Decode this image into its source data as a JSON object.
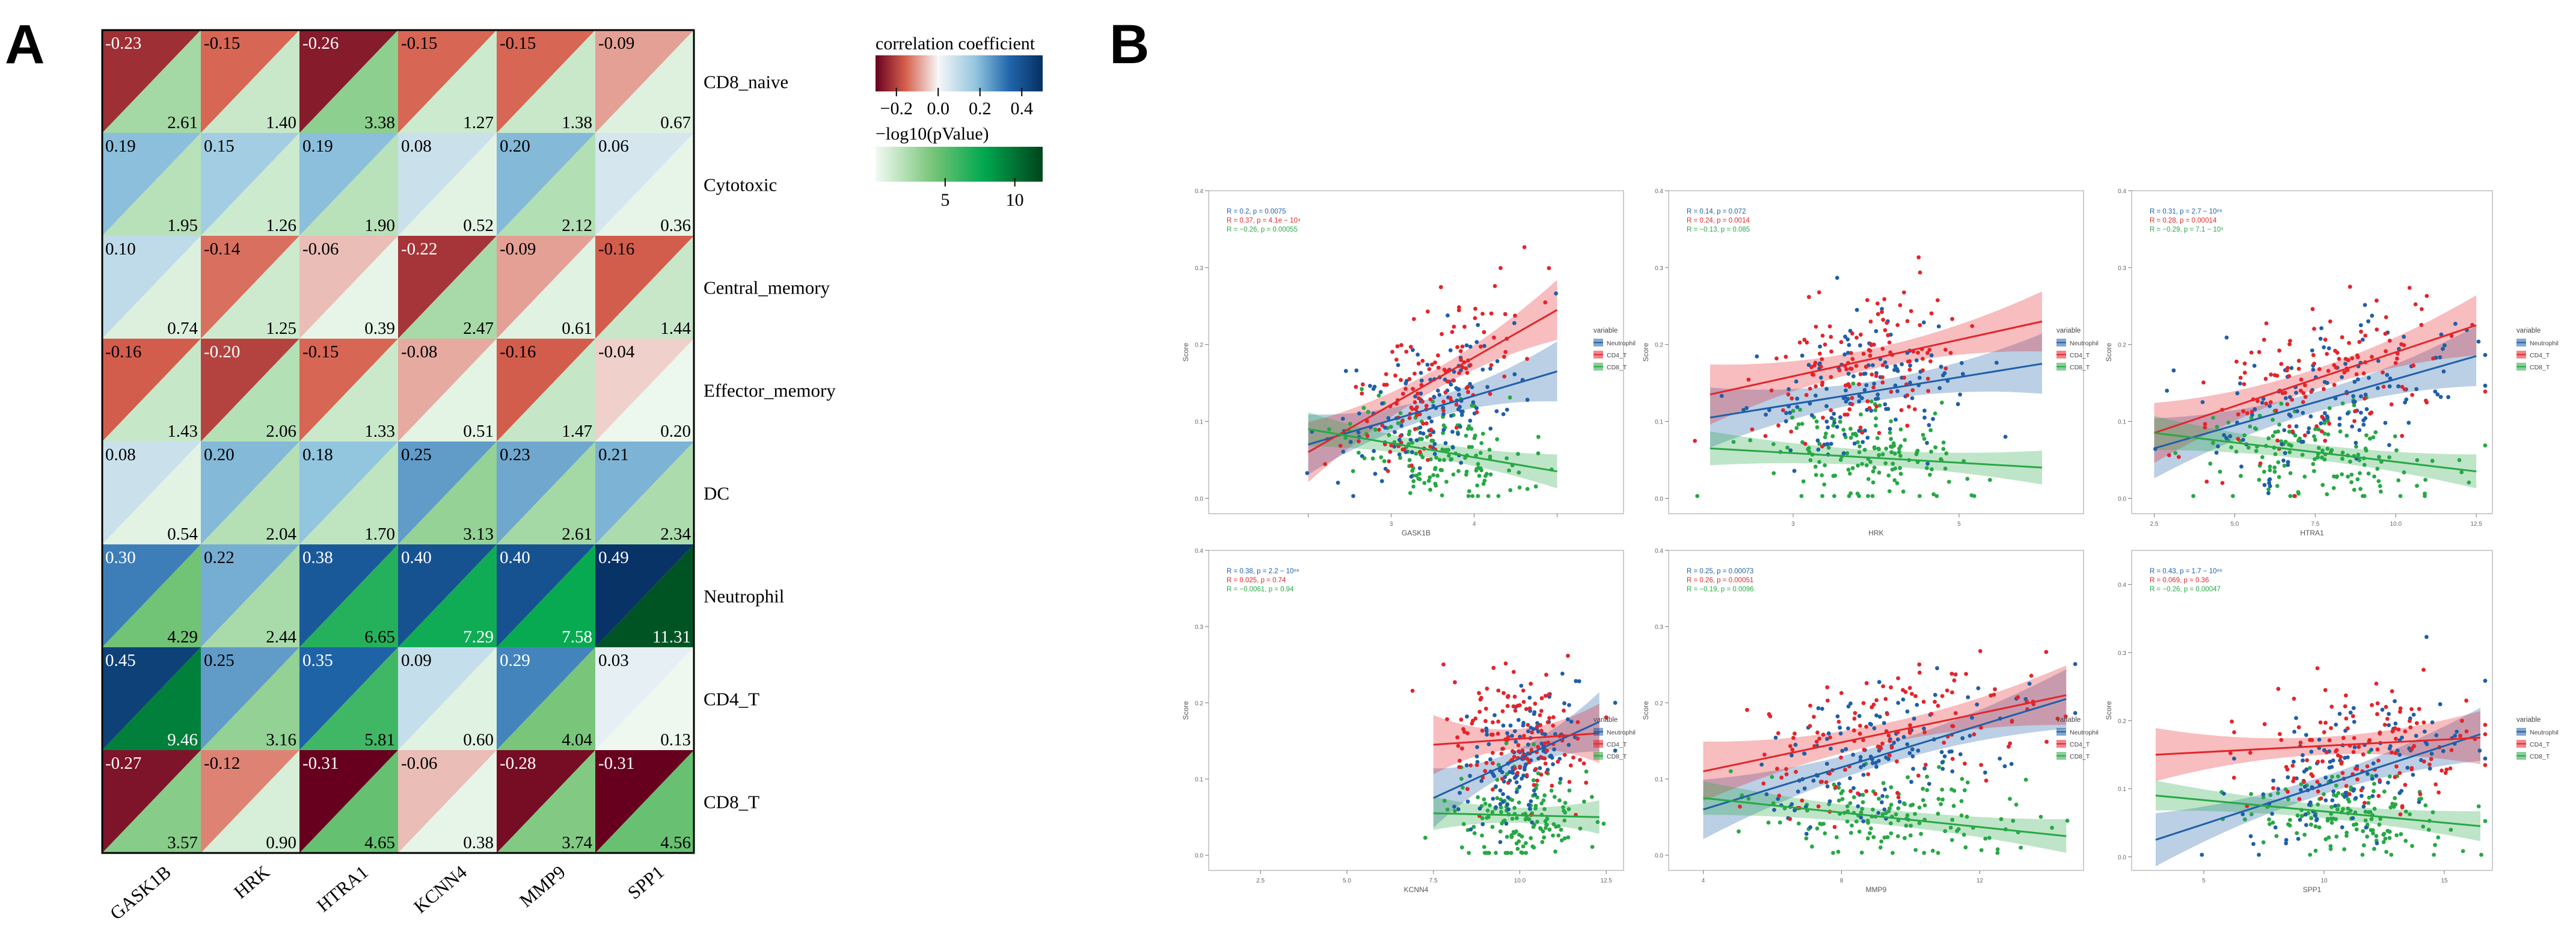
{
  "panel_labels": {
    "a": "A",
    "b": "B"
  },
  "colors": {
    "neutrophil": "#1f5fa8",
    "cd4": "#e3252b",
    "cd8": "#27a845",
    "corr_neg": "#67001f",
    "corr_mid": "#f7f7f7",
    "corr_pos": "#053061",
    "p_low": "#f2faf3",
    "p_high": "#00441b"
  },
  "chart_data": [
    {
      "type": "heatmap",
      "panel": "A",
      "columns": [
        "GASK1B",
        "HRK",
        "HTRA1",
        "KCNN4",
        "MMP9",
        "SPP1"
      ],
      "rows": [
        "CD8_naive",
        "Cytotoxic",
        "Central_memory",
        "Effector_memory",
        "DC",
        "Neutrophil",
        "CD4_T",
        "CD8_T"
      ],
      "correlation": [
        [
          -0.23,
          -0.15,
          -0.26,
          -0.15,
          -0.15,
          -0.09
        ],
        [
          0.19,
          0.15,
          0.19,
          0.08,
          0.2,
          0.06
        ],
        [
          0.1,
          -0.14,
          -0.06,
          -0.22,
          -0.09,
          -0.16
        ],
        [
          -0.16,
          -0.2,
          -0.15,
          -0.08,
          -0.16,
          -0.04
        ],
        [
          0.08,
          0.2,
          0.18,
          0.25,
          0.23,
          0.21
        ],
        [
          0.3,
          0.22,
          0.38,
          0.4,
          0.4,
          0.49
        ],
        [
          0.45,
          0.25,
          0.35,
          0.09,
          0.29,
          0.03
        ],
        [
          -0.27,
          -0.12,
          -0.31,
          -0.06,
          -0.28,
          -0.31
        ]
      ],
      "correlation_labels": [
        [
          "-0.23",
          "-0.15",
          "-0.26",
          "-0.15",
          "-0.15",
          "-0.09"
        ],
        [
          "0.19",
          "0.15",
          "0.19",
          "0.08",
          "0.20",
          "0.06"
        ],
        [
          "0.10",
          "-0.14",
          "-0.06",
          "-0.22",
          "-0.09",
          "-0.16"
        ],
        [
          "-0.16",
          "-0.20",
          "-0.15",
          "-0.08",
          "-0.16",
          "-0.04"
        ],
        [
          "0.08",
          "0.20",
          "0.18",
          "0.25",
          "0.23",
          "0.21"
        ],
        [
          "0.30",
          "0.22",
          "0.38",
          "0.40",
          "0.40",
          "0.49"
        ],
        [
          "0.45",
          "0.25",
          "0.35",
          "0.09",
          "0.29",
          "0.03"
        ],
        [
          "-0.27",
          "-0.12",
          "-0.31",
          "-0.06",
          "-0.28",
          "-0.31"
        ]
      ],
      "neg_log10_p": [
        [
          2.61,
          1.4,
          3.38,
          1.27,
          1.38,
          0.67
        ],
        [
          1.95,
          1.26,
          1.9,
          0.52,
          2.12,
          0.36
        ],
        [
          0.74,
          1.25,
          0.39,
          2.47,
          0.61,
          1.44
        ],
        [
          1.43,
          2.06,
          1.33,
          0.51,
          1.47,
          0.2
        ],
        [
          0.54,
          2.04,
          1.7,
          3.13,
          2.61,
          2.34
        ],
        [
          4.29,
          2.44,
          6.65,
          7.29,
          7.58,
          11.31
        ],
        [
          9.46,
          3.16,
          5.81,
          0.6,
          4.04,
          0.13
        ],
        [
          3.57,
          0.9,
          4.65,
          0.38,
          3.74,
          4.56
        ]
      ],
      "p_labels": [
        [
          "2.61",
          "1.40",
          "3.38",
          "1.27",
          "1.38",
          "0.67"
        ],
        [
          "1.95",
          "1.26",
          "1.90",
          "0.52",
          "2.12",
          "0.36"
        ],
        [
          "0.74",
          "1.25",
          "0.39",
          "2.47",
          "0.61",
          "1.44"
        ],
        [
          "1.43",
          "2.06",
          "1.33",
          "0.51",
          "1.47",
          "0.20"
        ],
        [
          "0.54",
          "2.04",
          "1.70",
          "3.13",
          "2.61",
          "2.34"
        ],
        [
          "4.29",
          "2.44",
          "6.65",
          "7.29",
          "7.58",
          "11.31"
        ],
        [
          "9.46",
          "3.16",
          "5.81",
          "0.60",
          "4.04",
          "0.13"
        ],
        [
          "3.57",
          "0.90",
          "4.65",
          "0.38",
          "3.74",
          "4.56"
        ]
      ],
      "legend": {
        "corr_title": "correlation coefficient",
        "corr_range": [
          -0.3,
          0.5
        ],
        "corr_ticks": [
          -0.2,
          0.0,
          0.2,
          0.4
        ],
        "corr_tick_labels": [
          "−0.2",
          "0.0",
          "0.2",
          "0.4"
        ],
        "p_title": "−log10(pValue)",
        "p_range": [
          0,
          12
        ],
        "p_ticks": [
          5,
          10
        ],
        "p_tick_labels": [
          "5",
          "10"
        ]
      }
    },
    {
      "type": "scatter",
      "panel": "B",
      "legend_title": "variable",
      "legend_entries": [
        "Neutrophil",
        "CD4_T",
        "CD8_T"
      ],
      "ylabel": "Score",
      "plots": [
        {
          "xlabel": "GASK1B",
          "xlim": [
            0.8,
            5.8
          ],
          "ylim": [
            -0.02,
            0.4
          ],
          "x_ticks": [
            2,
            3,
            4,
            5
          ],
          "x_tick_labels": [
            "",
            "3",
            "4",
            ""
          ],
          "y_ticks": [
            0.0,
            0.1,
            0.2,
            0.3,
            0.4
          ],
          "y_tick_labels": [
            "0.0",
            "0.1",
            "0.2",
            "0.3",
            "0.4"
          ],
          "x_mean": 3.5,
          "x_sd": 0.55,
          "stats": [
            "R = 0.2, p = 0.0075",
            "R = 0.37, p = 4.1e − 10⁴",
            "R = −0.26, p = 0.00055"
          ],
          "lines": {
            "neutrophil": [
              [
                2.0,
                0.07
              ],
              [
                5.0,
                0.165
              ]
            ],
            "cd4": [
              [
                2.0,
                0.06
              ],
              [
                5.0,
                0.245
              ]
            ],
            "cd8": [
              [
                2.0,
                0.09
              ],
              [
                5.0,
                0.035
              ]
            ]
          }
        },
        {
          "xlabel": "HRK",
          "xlim": [
            1.5,
            6.5
          ],
          "ylim": [
            -0.02,
            0.4
          ],
          "x_ticks": [
            3,
            5
          ],
          "x_tick_labels": [
            "3",
            "5"
          ],
          "y_ticks": [
            0.0,
            0.1,
            0.2,
            0.3,
            0.4
          ],
          "y_tick_labels": [
            "0.0",
            "0.1",
            "0.2",
            "0.3",
            "0.4"
          ],
          "x_mean": 3.8,
          "x_sd": 0.6,
          "stats": [
            "R = 0.14, p = 0.072",
            "R = 0.24, p = 0.0014",
            "R = −0.13, p = 0.085"
          ],
          "lines": {
            "neutrophil": [
              [
                2.0,
                0.105
              ],
              [
                6.0,
                0.175
              ]
            ],
            "cd4": [
              [
                2.0,
                0.135
              ],
              [
                6.0,
                0.23
              ]
            ],
            "cd8": [
              [
                2.0,
                0.065
              ],
              [
                6.0,
                0.04
              ]
            ]
          }
        },
        {
          "xlabel": "HTRA1",
          "xlim": [
            1.8,
            13.0
          ],
          "ylim": [
            -0.02,
            0.4
          ],
          "x_ticks": [
            2.5,
            5.0,
            7.5,
            10.0,
            12.5
          ],
          "x_tick_labels": [
            "2.5",
            "5.0",
            "7.5",
            "10.0",
            "12.5"
          ],
          "y_ticks": [
            0.0,
            0.1,
            0.2,
            0.3,
            0.4
          ],
          "y_tick_labels": [
            "0.0",
            "0.1",
            "0.2",
            "0.3",
            "0.4"
          ],
          "x_mean": 7.8,
          "x_sd": 1.9,
          "stats": [
            "R = 0.31, p = 2.7 − 10⁶⁶",
            "R = 0.28, p = 0.00014",
            "R = −0.29, p = 7.1 − 10⁵"
          ],
          "lines": {
            "neutrophil": [
              [
                2.5,
                0.065
              ],
              [
                12.5,
                0.185
              ]
            ],
            "cd4": [
              [
                2.5,
                0.085
              ],
              [
                12.5,
                0.225
              ]
            ],
            "cd8": [
              [
                2.5,
                0.085
              ],
              [
                12.5,
                0.035
              ]
            ]
          }
        },
        {
          "xlabel": "KCNN4",
          "xlim": [
            1.0,
            13.0
          ],
          "ylim": [
            -0.02,
            0.4
          ],
          "x_ticks": [
            2.5,
            5.0,
            7.5,
            10.0,
            12.5
          ],
          "x_tick_labels": [
            "2.5",
            "5.0",
            "7.5",
            "10.0",
            "12.5"
          ],
          "y_ticks": [
            0.0,
            0.1,
            0.2,
            0.3,
            0.4
          ],
          "y_tick_labels": [
            "0.0",
            "0.1",
            "0.2",
            "0.3",
            "0.4"
          ],
          "x_mean": 10.0,
          "x_sd": 1.0,
          "stats": [
            "R = 0.38, p = 2.2 − 10⁶⁶",
            "R = 0.025, p = 0.74",
            "R = −0.0061, p = 0.94"
          ],
          "lines": {
            "neutrophil": [
              [
                7.5,
                0.075
              ],
              [
                12.3,
                0.175
              ]
            ],
            "cd4": [
              [
                7.5,
                0.145
              ],
              [
                12.3,
                0.16
              ]
            ],
            "cd8": [
              [
                7.5,
                0.055
              ],
              [
                12.3,
                0.05
              ]
            ]
          }
        },
        {
          "xlabel": "MMP9",
          "xlim": [
            3.0,
            15.0
          ],
          "ylim": [
            -0.02,
            0.4
          ],
          "x_ticks": [
            4,
            8,
            12
          ],
          "x_tick_labels": [
            "4",
            "8",
            "12"
          ],
          "y_ticks": [
            0.0,
            0.1,
            0.2,
            0.3,
            0.4
          ],
          "y_tick_labels": [
            "0.0",
            "0.1",
            "0.2",
            "0.3",
            "0.4"
          ],
          "x_mean": 9.3,
          "x_sd": 1.9,
          "stats": [
            "R = 0.25, p = 0.00073",
            "R = 0.26, p = 0.00051",
            "R = −0.19, p = 0.0096"
          ],
          "lines": {
            "neutrophil": [
              [
                4.0,
                0.06
              ],
              [
                14.5,
                0.205
              ]
            ],
            "cd4": [
              [
                4.0,
                0.11
              ],
              [
                14.5,
                0.21
              ]
            ],
            "cd8": [
              [
                4.0,
                0.075
              ],
              [
                14.5,
                0.025
              ]
            ]
          }
        },
        {
          "xlabel": "SPP1",
          "xlim": [
            2.0,
            17.0
          ],
          "ylim": [
            -0.02,
            0.45
          ],
          "x_ticks": [
            5,
            10,
            15
          ],
          "x_tick_labels": [
            "5",
            "10",
            "15"
          ],
          "y_ticks": [
            0.0,
            0.1,
            0.2,
            0.3,
            0.4
          ],
          "y_tick_labels": [
            "0.0",
            "0.1",
            "0.2",
            "0.3",
            "0.4"
          ],
          "x_mean": 11.2,
          "x_sd": 2.4,
          "stats": [
            "R = 0.43, p = 1.7 − 10⁶⁶",
            "R = 0.069, p = 0.36",
            "R = −0.26, p = 0.00047"
          ],
          "lines": {
            "neutrophil": [
              [
                3.0,
                0.025
              ],
              [
                16.5,
                0.18
              ]
            ],
            "cd4": [
              [
                3.0,
                0.15
              ],
              [
                16.5,
                0.175
              ]
            ],
            "cd8": [
              [
                3.0,
                0.09
              ],
              [
                16.5,
                0.045
              ]
            ]
          }
        }
      ]
    }
  ]
}
